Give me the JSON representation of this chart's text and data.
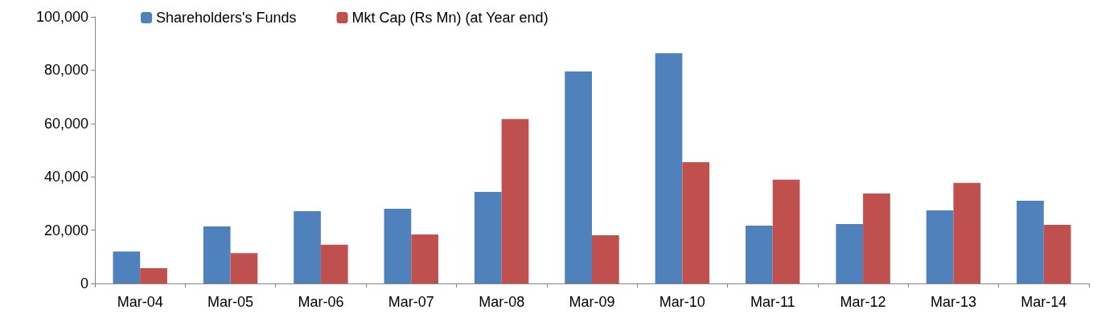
{
  "chart_data": {
    "type": "bar",
    "categories": [
      "Mar-04",
      "Mar-05",
      "Mar-06",
      "Mar-07",
      "Mar-08",
      "Mar-09",
      "Mar-10",
      "Mar-11",
      "Mar-12",
      "Mar-13",
      "Mar-14"
    ],
    "series": [
      {
        "name": "Shareholders's Funds",
        "color": "#4f81bd",
        "values": [
          12000,
          21400,
          27100,
          28000,
          34300,
          79500,
          86400,
          21700,
          22300,
          27400,
          31000
        ]
      },
      {
        "name": "Mkt Cap (Rs Mn) (at Year end)",
        "color": "#c0504d",
        "values": [
          5700,
          11400,
          14500,
          18400,
          61700,
          18100,
          45500,
          38900,
          33700,
          37700,
          22000
        ]
      }
    ],
    "ylim": [
      0,
      100000
    ],
    "yticks": [
      {
        "value": 0,
        "label": "0"
      },
      {
        "value": 20000,
        "label": "20,000"
      },
      {
        "value": 40000,
        "label": "40,000"
      },
      {
        "value": 60000,
        "label": "60,000"
      },
      {
        "value": 80000,
        "label": "80,000"
      },
      {
        "value": 100000,
        "label": "100,000"
      }
    ],
    "grid": false,
    "legend": "top"
  }
}
